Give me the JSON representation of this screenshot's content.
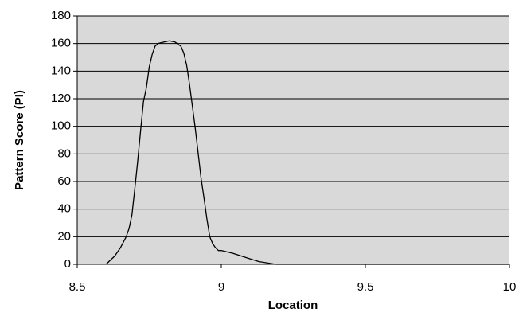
{
  "chart_data": {
    "type": "line",
    "title": "",
    "xlabel": "Location",
    "ylabel": "Pattern Score (PI)",
    "xlim": [
      8.5,
      10
    ],
    "ylim": [
      0,
      180
    ],
    "xticks": [
      8.5,
      9,
      9.5,
      10
    ],
    "yticks": [
      0,
      20,
      40,
      60,
      80,
      100,
      120,
      140,
      160,
      180
    ],
    "xtick_labels": [
      "8.5",
      "9",
      "9.5",
      "10"
    ],
    "ytick_labels": [
      "0",
      "20",
      "40",
      "60",
      "80",
      "100",
      "120",
      "140",
      "160",
      "180"
    ],
    "grid": "horizontal",
    "legend": "none",
    "colors": {
      "plot_background": "#d9d9d9",
      "line": "#000000",
      "grid": "#000000"
    },
    "series": [
      {
        "x": [
          8.6,
          8.61,
          8.63,
          8.65,
          8.67,
          8.68,
          8.69,
          8.7,
          8.71,
          8.72,
          8.73,
          8.74,
          8.75,
          8.76,
          8.77,
          8.78,
          8.8,
          8.82,
          8.84,
          8.86,
          8.87,
          8.88,
          8.89,
          8.9,
          8.91,
          8.92,
          8.93,
          8.94,
          8.95,
          8.96,
          8.97,
          8.98,
          8.99,
          9.0,
          9.02,
          9.04,
          9.07,
          9.1,
          9.13,
          9.16,
          9.19,
          9.22,
          9.3,
          9.5,
          9.7,
          9.9,
          10.0
        ],
        "y": [
          0,
          2,
          6,
          12,
          20,
          26,
          36,
          55,
          75,
          97,
          118,
          128,
          143,
          152,
          158,
          160,
          161,
          162,
          161,
          158,
          153,
          144,
          130,
          114,
          98,
          80,
          62,
          48,
          33,
          20,
          15,
          12,
          10,
          10,
          9,
          8,
          6,
          4,
          2,
          1,
          0,
          0,
          0,
          0,
          0,
          0,
          0
        ]
      }
    ]
  }
}
